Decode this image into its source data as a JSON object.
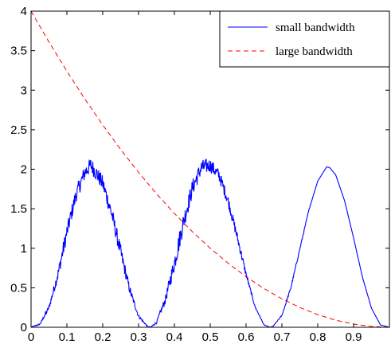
{
  "chart_data": {
    "type": "line",
    "title": "",
    "xlabel": "",
    "ylabel": "",
    "xlim": [
      0,
      1
    ],
    "ylim": [
      0,
      4
    ],
    "grid": false,
    "legend_position": "top-right",
    "x_ticks": [
      "0",
      "0.1",
      "0.2",
      "0.3",
      "0.4",
      "0.5",
      "0.6",
      "0.7",
      "0.8",
      "0.9"
    ],
    "x_tick_values": [
      0,
      0.1,
      0.2,
      0.3,
      0.4,
      0.5,
      0.6,
      0.7,
      0.8,
      0.9
    ],
    "y_ticks": [
      "0",
      "0.5",
      "1",
      "1.5",
      "2",
      "2.5",
      "3",
      "3.5",
      "4"
    ],
    "y_tick_values": [
      0,
      0.5,
      1,
      1.5,
      2,
      2.5,
      3,
      3.5,
      4
    ],
    "series": [
      {
        "name": "small bandwidth",
        "color": "#0000ff",
        "style": "solid",
        "x": [
          0,
          0.025,
          0.05,
          0.075,
          0.1,
          0.125,
          0.15,
          0.1667,
          0.175,
          0.2,
          0.225,
          0.25,
          0.275,
          0.3,
          0.325,
          0.3333,
          0.35,
          0.375,
          0.4,
          0.425,
          0.45,
          0.475,
          0.5,
          0.525,
          0.55,
          0.575,
          0.6,
          0.625,
          0.65,
          0.6667,
          0.675,
          0.7,
          0.725,
          0.75,
          0.775,
          0.8,
          0.825,
          0.8333,
          0.85,
          0.875,
          0.9,
          0.925,
          0.95,
          0.975,
          1.0
        ],
        "y": [
          0,
          0.04,
          0.25,
          0.67,
          1.2,
          1.67,
          1.96,
          2.05,
          2.0,
          1.82,
          1.44,
          0.95,
          0.48,
          0.14,
          0.01,
          0,
          0.06,
          0.35,
          0.81,
          1.33,
          1.76,
          2.02,
          2.05,
          1.92,
          1.6,
          1.15,
          0.67,
          0.26,
          0.03,
          0,
          0.01,
          0.15,
          0.5,
          0.99,
          1.48,
          1.85,
          2.03,
          2.02,
          1.93,
          1.6,
          1.13,
          0.63,
          0.24,
          0.03,
          0
        ],
        "noise": [
          0.1,
          0.15,
          0.05
        ]
      },
      {
        "name": "large bandwidth",
        "color": "#ff0000",
        "style": "dashed",
        "x": [
          0,
          0.05,
          0.1,
          0.15,
          0.2,
          0.25,
          0.3,
          0.35,
          0.4,
          0.45,
          0.5,
          0.55,
          0.6,
          0.65,
          0.7,
          0.75,
          0.8,
          0.85,
          0.9,
          0.95,
          1.0
        ],
        "y": [
          4.0,
          3.61,
          3.24,
          2.89,
          2.56,
          2.25,
          1.96,
          1.69,
          1.44,
          1.21,
          1.0,
          0.81,
          0.64,
          0.49,
          0.36,
          0.25,
          0.16,
          0.09,
          0.04,
          0.01,
          0
        ]
      }
    ]
  }
}
